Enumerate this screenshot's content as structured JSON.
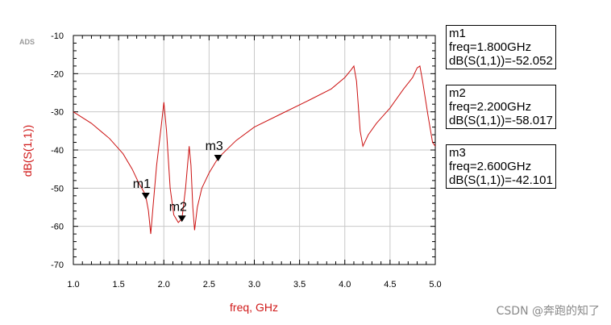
{
  "ads_tag": "ADS",
  "watermark": "CSDN @奔跑的知了",
  "chart_data": {
    "type": "line",
    "title": "",
    "xlabel": "freq, GHz",
    "ylabel": "dB(S(1,1))",
    "xlim": [
      1.0,
      5.0
    ],
    "ylim": [
      -70,
      -10
    ],
    "xticks": [
      "1.0",
      "1.5",
      "2.0",
      "2.5",
      "3.0",
      "3.5",
      "4.0",
      "4.5",
      "5.0"
    ],
    "yticks": [
      "-10",
      "-20",
      "-30",
      "-40",
      "-50",
      "-60",
      "-70"
    ],
    "grid": true,
    "line_color": "#cc1111",
    "series": [
      {
        "x": [
          1.0,
          1.2,
          1.4,
          1.55,
          1.65,
          1.72,
          1.78,
          1.8,
          1.83,
          1.855,
          1.88,
          1.92,
          1.97,
          2.0,
          2.03,
          2.07,
          2.11,
          2.16,
          2.2,
          2.24,
          2.28,
          2.3,
          2.32,
          2.34,
          2.37,
          2.42,
          2.5,
          2.6,
          2.8,
          3.0,
          3.3,
          3.6,
          3.85,
          4.0,
          4.07,
          4.1,
          4.13,
          4.17,
          4.2,
          4.26,
          4.35,
          4.5,
          4.65,
          4.75,
          4.8,
          4.83,
          4.86,
          4.92,
          4.97,
          5.0
        ],
        "y": [
          -30,
          -33,
          -37,
          -41,
          -45,
          -48.5,
          -51,
          -52.05,
          -56,
          -62,
          -55,
          -44,
          -34,
          -27.5,
          -35,
          -50,
          -57,
          -59,
          -58.02,
          -50,
          -39,
          -44,
          -55,
          -61,
          -55,
          -50,
          -46,
          -42.1,
          -37.5,
          -34,
          -30.5,
          -27,
          -24,
          -21,
          -19,
          -18,
          -22,
          -35,
          -39,
          -36,
          -33,
          -29,
          -24,
          -21,
          -18.5,
          -18,
          -22,
          -31,
          -38,
          -39
        ]
      }
    ],
    "markers": [
      {
        "name": "m1",
        "freq": 1.8,
        "value": -52.052,
        "freq_text": "freq=1.800GHz",
        "value_text": "dB(S(1,1))=-52.052"
      },
      {
        "name": "m2",
        "freq": 2.2,
        "value": -58.017,
        "freq_text": "freq=2.200GHz",
        "value_text": "dB(S(1,1))=-58.017"
      },
      {
        "name": "m3",
        "freq": 2.6,
        "value": -42.101,
        "freq_text": "freq=2.600GHz",
        "value_text": "dB(S(1,1))=-42.101"
      }
    ]
  }
}
